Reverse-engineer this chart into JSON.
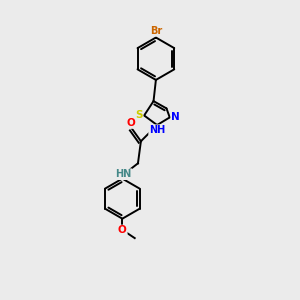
{
  "background_color": "#ebebeb",
  "bond_color": "#000000",
  "atom_colors": {
    "Br": "#cc6600",
    "S": "#cccc00",
    "N": "#0000ff",
    "O": "#ff0000",
    "H_teal": "#448888",
    "C": "#000000"
  },
  "figsize": [
    3.0,
    3.0
  ],
  "dpi": 100
}
